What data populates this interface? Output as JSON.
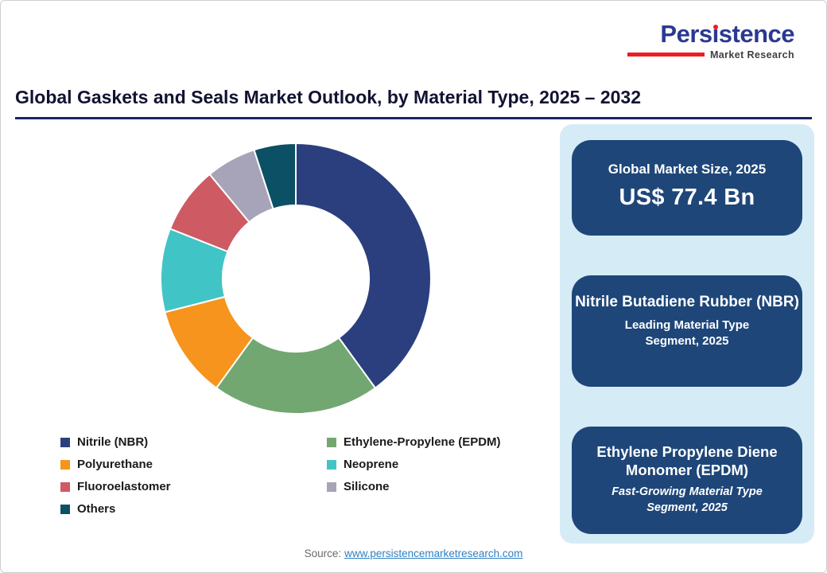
{
  "logo": {
    "brand": "Persistence",
    "brand_parts": {
      "pre": "Pers",
      "i": "ı",
      "post": "stence"
    },
    "subtitle": "Market Research",
    "brand_color": "#2b3991",
    "accent_color": "#ec1c24"
  },
  "header": {
    "title": "Global Gaskets and Seals Market Outlook, by Material Type, 2025 – 2032"
  },
  "chart_data": {
    "type": "pie",
    "subtype": "donut",
    "title": "Global Gaskets and Seals Market Outlook, by Material Type, 2025 – 2032",
    "categories": [
      "Nitrile (NBR)",
      "Ethylene-Propylene (EPDM)",
      "Polyurethane",
      "Neoprene",
      "Fluoroelastomer",
      "Silicone",
      "Others"
    ],
    "values": [
      40,
      20,
      11,
      10,
      8,
      6,
      5
    ],
    "colors": [
      "#2b3f7e",
      "#73a771",
      "#f6941d",
      "#41c4c6",
      "#ce5a63",
      "#a7a3b8",
      "#0b5065"
    ],
    "legend_position": "bottom-left",
    "start_angle_deg": 0,
    "direction": "clockwise",
    "inner_radius_ratio": 0.54
  },
  "panel": {
    "bg_color": "#d5ecf6",
    "card_color": "#1e4679",
    "cards": [
      {
        "title": "Global Market Size, 2025",
        "value": "US$ 77.4 Bn"
      },
      {
        "title": "Nitrile Butadiene Rubber (NBR)",
        "subtitle": "Leading Material Type Segment, 2025"
      },
      {
        "title": "Ethylene Propylene Diene Monomer (EPDM)",
        "subtitle": "Fast-Growing Material Type Segment, 2025"
      }
    ]
  },
  "footer": {
    "source_label": "Source:",
    "source_link": "www.persistencemarketresearch.com"
  }
}
